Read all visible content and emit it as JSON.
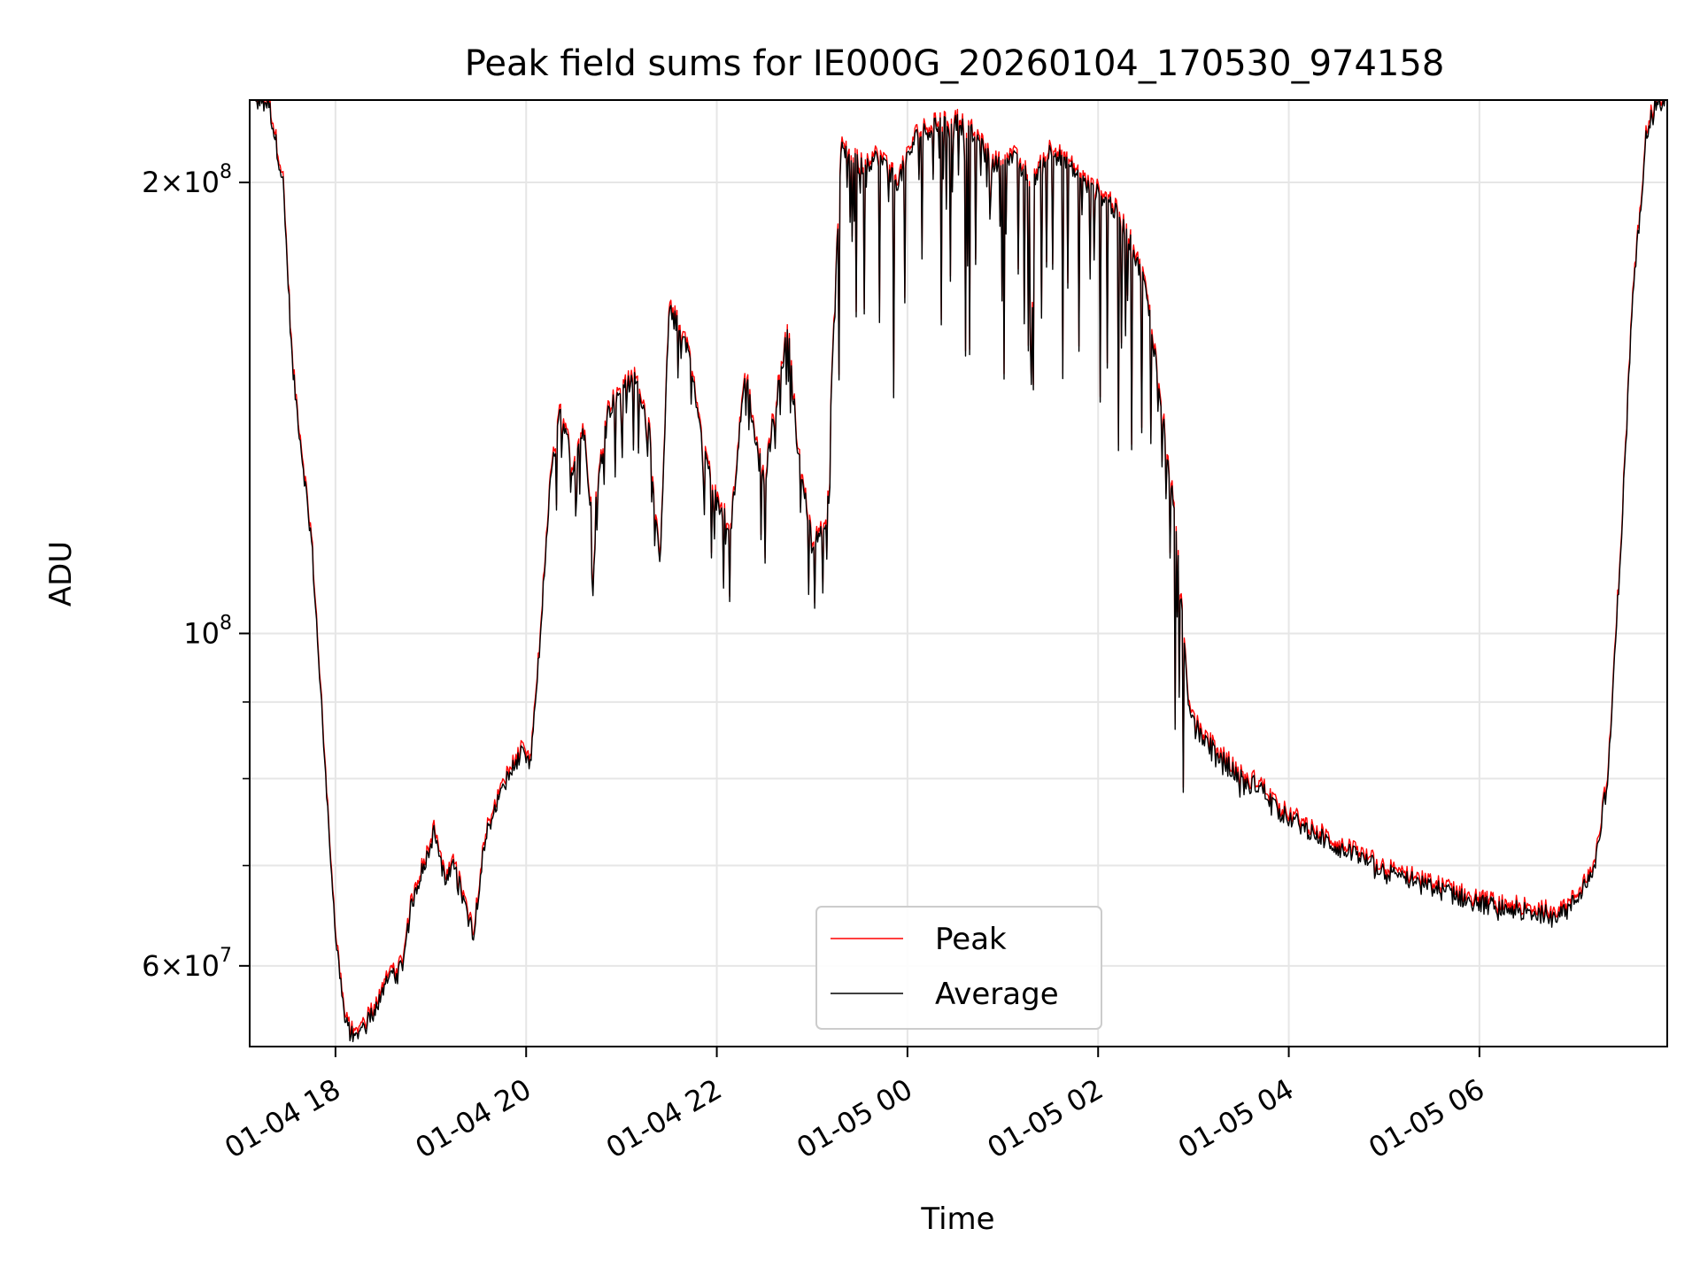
{
  "chart_data": {
    "type": "line",
    "title": "Peak field sums for IE000G_20260104_170530_974158",
    "xlabel": "Time",
    "ylabel": "ADU",
    "y_scale": "log",
    "xlim_hours": [
      17.1,
      31.97
    ],
    "ylim": [
      53000000,
      227000000
    ],
    "grid": true,
    "legend_position": "lower center",
    "x_ticks": [
      {
        "hours": 18,
        "label": "01-04 18"
      },
      {
        "hours": 20,
        "label": "01-04 20"
      },
      {
        "hours": 22,
        "label": "01-04 22"
      },
      {
        "hours": 24,
        "label": "01-05 00"
      },
      {
        "hours": 26,
        "label": "01-05 02"
      },
      {
        "hours": 28,
        "label": "01-05 04"
      },
      {
        "hours": 30,
        "label": "01-05 06"
      }
    ],
    "y_major_ticks": [
      {
        "value": 60000000,
        "mant": "6",
        "exp": "7"
      },
      {
        "value": 100000000,
        "mant": "",
        "exp": "8"
      },
      {
        "value": 200000000,
        "mant": "2",
        "exp": "8"
      }
    ],
    "y_minor_ticks": [
      70000000,
      80000000,
      90000000
    ],
    "series": [
      {
        "name": "Peak",
        "color": "#ff0000",
        "offset_ratio": 1.008
      },
      {
        "name": "Average",
        "color": "#000000",
        "offset_ratio": 1.0
      }
    ],
    "average_keypoints": [
      [
        17.1,
        227000000
      ],
      [
        17.3,
        226000000
      ],
      [
        17.45,
        200000000
      ],
      [
        17.55,
        150000000
      ],
      [
        17.75,
        115000000
      ],
      [
        17.9,
        80000000
      ],
      [
        18.0,
        63000000
      ],
      [
        18.1,
        55000000
      ],
      [
        18.2,
        53500000
      ],
      [
        18.4,
        56000000
      ],
      [
        18.55,
        59000000
      ],
      [
        18.7,
        60000000
      ],
      [
        18.8,
        66000000
      ],
      [
        18.95,
        71000000
      ],
      [
        19.05,
        74000000
      ],
      [
        19.15,
        68000000
      ],
      [
        19.25,
        70000000
      ],
      [
        19.35,
        66000000
      ],
      [
        19.45,
        63000000
      ],
      [
        19.55,
        72000000
      ],
      [
        19.65,
        76000000
      ],
      [
        19.8,
        80000000
      ],
      [
        19.95,
        83000000
      ],
      [
        20.05,
        82000000
      ],
      [
        20.15,
        100000000
      ],
      [
        20.25,
        125000000
      ],
      [
        20.35,
        140000000
      ],
      [
        20.5,
        130000000
      ],
      [
        20.6,
        137000000
      ],
      [
        20.7,
        118000000
      ],
      [
        20.85,
        140000000
      ],
      [
        21.0,
        146000000
      ],
      [
        21.15,
        148000000
      ],
      [
        21.3,
        136000000
      ],
      [
        21.4,
        110000000
      ],
      [
        21.5,
        165000000
      ],
      [
        21.6,
        160000000
      ],
      [
        21.7,
        155000000
      ],
      [
        21.8,
        140000000
      ],
      [
        21.9,
        130000000
      ],
      [
        22.0,
        122000000
      ],
      [
        22.15,
        118000000
      ],
      [
        22.3,
        150000000
      ],
      [
        22.4,
        135000000
      ],
      [
        22.5,
        126000000
      ],
      [
        22.6,
        140000000
      ],
      [
        22.75,
        160000000
      ],
      [
        22.85,
        132000000
      ],
      [
        23.0,
        115000000
      ],
      [
        23.15,
        118000000
      ],
      [
        23.3,
        210000000
      ],
      [
        23.5,
        205000000
      ],
      [
        23.7,
        208000000
      ],
      [
        23.9,
        200000000
      ],
      [
        24.1,
        215000000
      ],
      [
        24.3,
        218000000
      ],
      [
        24.5,
        220000000
      ],
      [
        24.7,
        215000000
      ],
      [
        24.9,
        205000000
      ],
      [
        25.1,
        208000000
      ],
      [
        25.3,
        200000000
      ],
      [
        25.5,
        210000000
      ],
      [
        25.7,
        205000000
      ],
      [
        25.9,
        198000000
      ],
      [
        26.1,
        195000000
      ],
      [
        26.3,
        185000000
      ],
      [
        26.5,
        170000000
      ],
      [
        26.65,
        145000000
      ],
      [
        26.8,
        120000000
      ],
      [
        26.95,
        90000000
      ],
      [
        27.05,
        86000000
      ],
      [
        27.25,
        83000000
      ],
      [
        27.5,
        80000000
      ],
      [
        27.7,
        79000000
      ],
      [
        27.9,
        76000000
      ],
      [
        28.2,
        74000000
      ],
      [
        28.5,
        72000000
      ],
      [
        28.8,
        70500000
      ],
      [
        29.1,
        69000000
      ],
      [
        29.4,
        68000000
      ],
      [
        29.7,
        67000000
      ],
      [
        30.0,
        66000000
      ],
      [
        30.3,
        65500000
      ],
      [
        30.6,
        65000000
      ],
      [
        30.9,
        65000000
      ],
      [
        31.05,
        67000000
      ],
      [
        31.2,
        70000000
      ],
      [
        31.35,
        80000000
      ],
      [
        31.5,
        120000000
      ],
      [
        31.6,
        165000000
      ],
      [
        31.75,
        215000000
      ],
      [
        31.85,
        227000000
      ],
      [
        31.97,
        227000000
      ]
    ],
    "noise_windows": [
      {
        "from": 23.25,
        "to": 26.95,
        "max_dip": 0.3
      },
      {
        "from": 20.3,
        "to": 23.2,
        "max_dip": 0.12
      },
      {
        "from": 27.0,
        "to": 28.0,
        "max_dip": 0.03
      }
    ]
  }
}
